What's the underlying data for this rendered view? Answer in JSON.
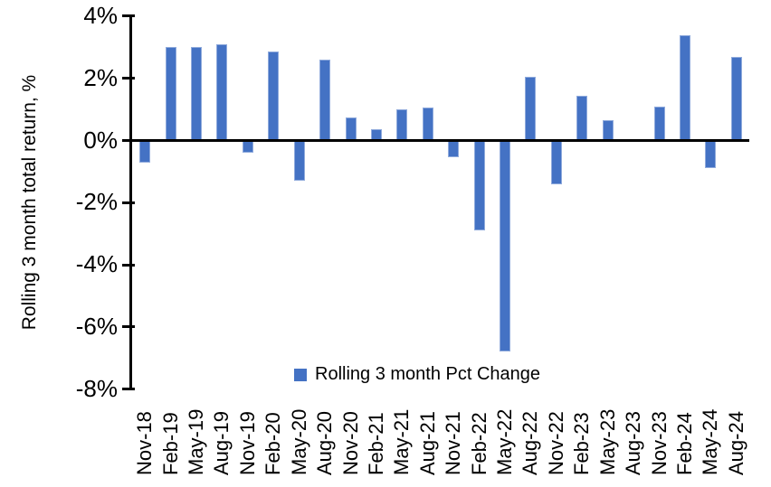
{
  "chart_data": {
    "type": "bar",
    "title": "",
    "xlabel": "",
    "ylabel": "Rolling 3 month total return, %",
    "legend": [
      "Rolling 3 month Pct Change"
    ],
    "legend_position": "bottom-center-inside",
    "bar_color": "#4472C4",
    "axis_color": "#000000",
    "ylim": [
      -8,
      4
    ],
    "ytick_step": 2,
    "ytick_values": [
      4,
      2,
      0,
      -2,
      -4,
      -6,
      -8
    ],
    "ytick_labels": [
      "4%",
      "2%",
      "0%",
      "-2%",
      "-4%",
      "-6%",
      "-8%"
    ],
    "grid": false,
    "categories": [
      "Nov-18",
      "Feb-19",
      "May-19",
      "Aug-19",
      "Nov-19",
      "Feb-20",
      "May-20",
      "Aug-20",
      "Nov-20",
      "Feb-21",
      "May-21",
      "Aug-21",
      "Nov-21",
      "Feb-22",
      "May-22",
      "Aug-22",
      "Nov-22",
      "Feb-23",
      "May-23",
      "Aug-23",
      "Nov-23",
      "Feb-24",
      "May-24",
      "Aug-24"
    ],
    "values": [
      -0.7,
      3.0,
      3.0,
      3.1,
      -0.4,
      2.85,
      -1.3,
      2.6,
      0.75,
      0.35,
      1.0,
      1.05,
      -0.55,
      -2.9,
      -6.8,
      2.05,
      -1.4,
      1.45,
      0.65,
      0.0,
      1.1,
      3.4,
      -0.9,
      2.7
    ]
  }
}
